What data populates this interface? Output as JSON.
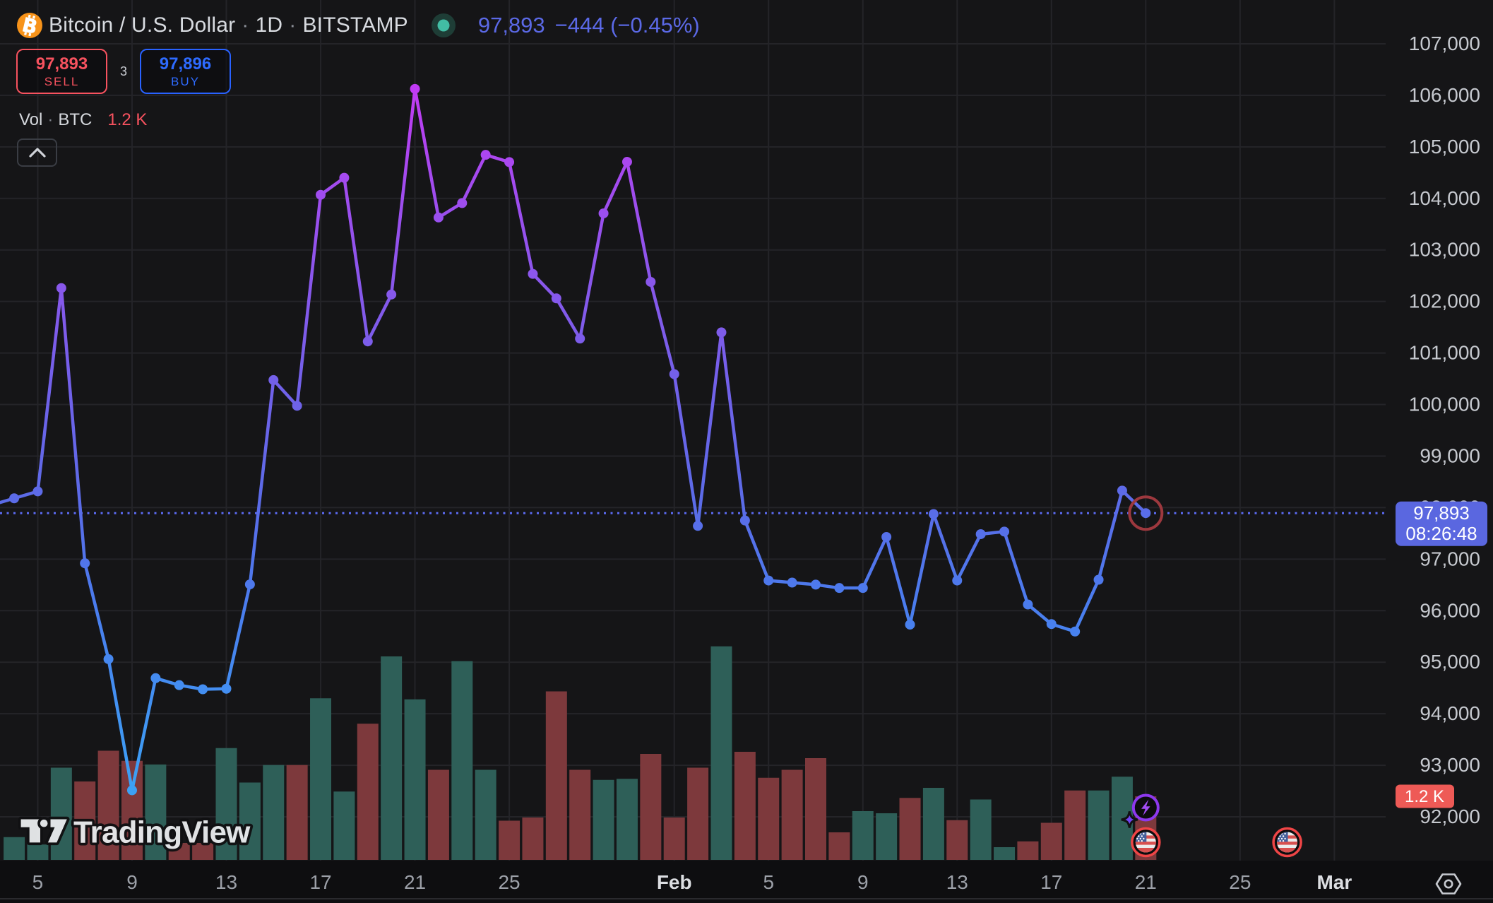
{
  "header": {
    "symbol_title": "Bitcoin / U.S. Dollar",
    "interval": "1D",
    "exchange": "BITSTAMP",
    "separator": "·",
    "last_price": "97,893",
    "change": "−444 (−0.45%)",
    "market_status_icon": "market-open-dot",
    "symbol_icon": "bitcoin-logo",
    "colors": {
      "quote": "#5b69e6",
      "title": "#d8dbe0",
      "bitcoin_orange": "#f7931a",
      "status_outer": "#1e3d36",
      "status_inner": "#42bda4"
    }
  },
  "order_panel": {
    "sell_price": "97,893",
    "sell_label": "SELL",
    "spread": "3",
    "buy_price": "97,896",
    "buy_label": "BUY",
    "colors": {
      "sell": "#f7525f",
      "buy": "#2962ff"
    }
  },
  "volume_legend": {
    "label": "Vol",
    "unit": "BTC",
    "separator": "·",
    "value": "1.2 K",
    "value_color": "#f7525f"
  },
  "watermark": {
    "text": "TradingView"
  },
  "price_scale": {
    "tick_labels": [
      "107,000",
      "106,000",
      "105,000",
      "104,000",
      "103,000",
      "102,000",
      "101,000",
      "100,000",
      "99,000",
      "98,000",
      "97,000",
      "96,000",
      "95,000",
      "94,000",
      "93,000",
      "92,000"
    ],
    "tick_values": [
      107000,
      106000,
      105000,
      104000,
      103000,
      102000,
      101000,
      100000,
      99000,
      98000,
      97000,
      96000,
      95000,
      94000,
      93000,
      92000
    ],
    "last_price_label": "97,893",
    "countdown": "08:26:48",
    "last_price_box_color": "#5a67e0",
    "volume_label": "1.2 K",
    "volume_label_color": "#ee5a56"
  },
  "time_scale": {
    "ticks": [
      {
        "i": 2,
        "label": "5",
        "bold": false
      },
      {
        "i": 6,
        "label": "9",
        "bold": false
      },
      {
        "i": 10,
        "label": "13",
        "bold": false
      },
      {
        "i": 14,
        "label": "17",
        "bold": false
      },
      {
        "i": 18,
        "label": "21",
        "bold": false
      },
      {
        "i": 22,
        "label": "25",
        "bold": false
      },
      {
        "i": 29,
        "label": "Feb",
        "bold": true
      },
      {
        "i": 33,
        "label": "5",
        "bold": false
      },
      {
        "i": 37,
        "label": "9",
        "bold": false
      },
      {
        "i": 41,
        "label": "13",
        "bold": false
      },
      {
        "i": 45,
        "label": "17",
        "bold": false
      },
      {
        "i": 49,
        "label": "21",
        "bold": false
      },
      {
        "i": 53,
        "label": "25",
        "bold": false
      },
      {
        "i": 57,
        "label": "Mar",
        "bold": true
      }
    ]
  },
  "event_markers": [
    {
      "icon": "us-flag-icon",
      "i": 49
    },
    {
      "icon": "us-flag-icon",
      "i": 55
    }
  ],
  "stream_badge": {
    "icon": "lightning-icon",
    "sparkle_icon": "sparkle-icon",
    "i": 49
  },
  "chart_data": {
    "type": "line",
    "title": "Bitcoin / U.S. Dollar · 1D · BITSTAMP",
    "xlabel": "",
    "ylabel": "",
    "ylim": [
      91550,
      107850
    ],
    "grid": true,
    "legend_position": "none",
    "x": [
      "Jan 3",
      "Jan 4",
      "Jan 5",
      "Jan 6",
      "Jan 7",
      "Jan 8",
      "Jan 9",
      "Jan 10",
      "Jan 11",
      "Jan 12",
      "Jan 13",
      "Jan 14",
      "Jan 15",
      "Jan 16",
      "Jan 17",
      "Jan 18",
      "Jan 19",
      "Jan 20",
      "Jan 21",
      "Jan 22",
      "Jan 23",
      "Jan 24",
      "Jan 25",
      "Jan 26",
      "Jan 27",
      "Jan 28",
      "Jan 29",
      "Jan 30",
      "Jan 31",
      "Feb 1",
      "Feb 2",
      "Feb 3",
      "Feb 4",
      "Feb 5",
      "Feb 6",
      "Feb 7",
      "Feb 8",
      "Feb 9",
      "Feb 10",
      "Feb 11",
      "Feb 12",
      "Feb 13",
      "Feb 14",
      "Feb 15",
      "Feb 16",
      "Feb 17",
      "Feb 18",
      "Feb 19",
      "Feb 20",
      "Feb 21"
    ],
    "series": [
      {
        "name": "BTCUSD close",
        "type": "line_with_markers",
        "values": [
          98045,
          98180,
          98315,
          102260,
          96920,
          95060,
          92515,
          94690,
          94555,
          94475,
          94485,
          96510,
          100475,
          99975,
          104070,
          104400,
          101225,
          102135,
          106125,
          103630,
          103910,
          104845,
          104705,
          102535,
          102060,
          101280,
          103710,
          104710,
          102380,
          100590,
          97645,
          101400,
          97750,
          96585,
          96545,
          96505,
          96440,
          96440,
          97430,
          95730,
          97875,
          96585,
          97485,
          97535,
          96120,
          95740,
          95595,
          96600,
          98330,
          97893
        ]
      },
      {
        "name": "Volume BTC (K)",
        "type": "bar",
        "values": [
          0,
          0.43,
          0.29,
          1.74,
          1.48,
          2.06,
          1.87,
          1.8,
          0.32,
          0.32,
          2.11,
          1.46,
          1.79,
          1.79,
          3.05,
          1.29,
          2.57,
          3.84,
          3.03,
          1.7,
          3.75,
          1.7,
          0.74,
          0.8,
          3.18,
          1.7,
          1.51,
          1.53,
          2.0,
          0.8,
          1.74,
          4.03,
          2.04,
          1.55,
          1.7,
          1.92,
          0.52,
          0.92,
          0.88,
          1.17,
          1.36,
          0.75,
          1.14,
          0.24,
          0.35,
          0.7,
          1.31,
          1.31,
          1.57,
          1.2
        ]
      }
    ],
    "last_value": 97893,
    "volume_up_color": "#2e5f58",
    "volume_down_color": "#7d393c",
    "line_gradient_top": "#c832f8",
    "line_gradient_bottom": "#3aa6f6"
  }
}
